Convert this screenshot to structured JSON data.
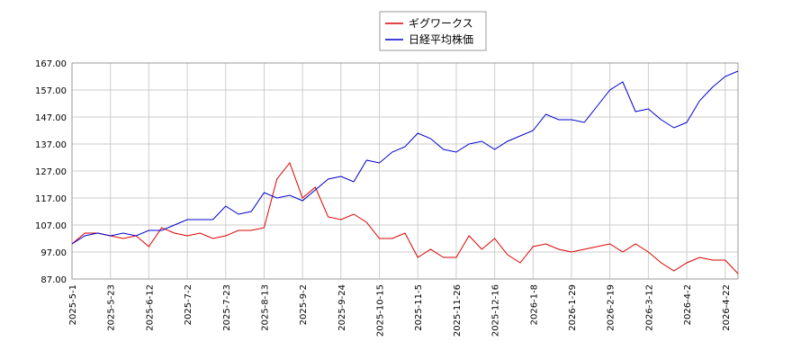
{
  "chart_data": {
    "type": "line",
    "categories": [
      "2025-5-1",
      null,
      null,
      "2025-5-23",
      null,
      null,
      "2025-6-12",
      null,
      null,
      "2025-7-2",
      null,
      null,
      "2025-7-23",
      null,
      null,
      "2025-8-13",
      null,
      null,
      "2025-9-2",
      null,
      null,
      "2025-9-24",
      null,
      null,
      "2025-10-15",
      null,
      null,
      "2025-11-5",
      null,
      null,
      "2025-11-26",
      null,
      null,
      "2025-12-16",
      null,
      null,
      "2026-1-8",
      null,
      null,
      "2026-1-29",
      null,
      null,
      "2026-2-19",
      null,
      null,
      "2026-3-12",
      null,
      null,
      "2026-4-2",
      null,
      null,
      "2026-4-22",
      null
    ],
    "series": [
      {
        "name": "ギグワークス",
        "color": "#dd0000",
        "values": [
          100,
          104,
          104,
          103,
          102,
          103,
          99,
          106,
          104,
          103,
          104,
          102,
          103,
          105,
          105,
          106,
          124,
          130,
          117,
          121,
          110,
          109,
          111,
          108,
          102,
          102,
          104,
          95,
          98,
          95,
          95,
          103,
          98,
          102,
          96,
          93,
          99,
          100,
          98,
          97,
          98,
          99,
          100,
          97,
          100,
          97,
          93,
          90,
          93,
          95,
          94,
          94,
          89
        ]
      },
      {
        "name": "日経平均株価",
        "color": "#0000cc",
        "values": [
          100,
          103,
          104,
          103,
          104,
          103,
          105,
          105,
          107,
          109,
          109,
          109,
          114,
          111,
          112,
          119,
          117,
          118,
          116,
          120,
          124,
          125,
          123,
          131,
          130,
          134,
          136,
          141,
          139,
          135,
          134,
          137,
          138,
          135,
          138,
          140,
          142,
          148,
          146,
          146,
          145,
          151,
          157,
          160,
          149,
          150,
          146,
          143,
          145,
          153,
          158,
          162,
          164
        ]
      }
    ],
    "ylim": [
      87,
      167
    ],
    "yticks": [
      {
        "value": 87,
        "label": "87.00"
      },
      {
        "value": 97,
        "label": "97.00"
      },
      {
        "value": 107,
        "label": "107.00"
      },
      {
        "value": 117,
        "label": "117.00"
      },
      {
        "value": 127,
        "label": "127.00"
      },
      {
        "value": 137,
        "label": "137.00"
      },
      {
        "value": 147,
        "label": "147.00"
      },
      {
        "value": 157,
        "label": "157.00"
      },
      {
        "value": 167,
        "label": "167.00"
      }
    ],
    "grid": true,
    "legend": "top"
  }
}
